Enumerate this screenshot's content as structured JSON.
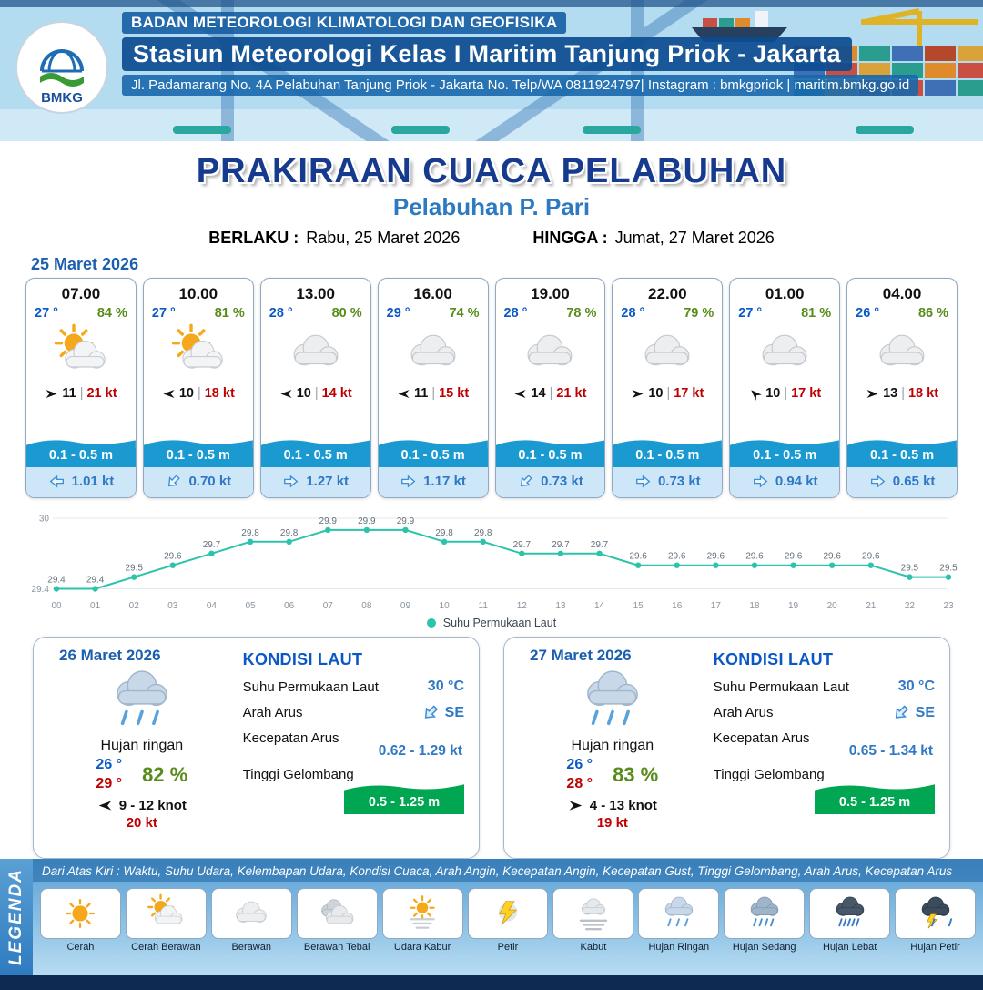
{
  "colors": {
    "temp_blue": "#0a58c8",
    "humidity_green": "#578c1a",
    "gust_red": "#c00000",
    "wave_band_blue": "#1b9ad2",
    "current_blue": "#2e78c6",
    "chart_line": "#2cc3ab",
    "wave_green": "#00a651",
    "title_blue": "#163a8e",
    "subtitle_blue": "#2e7ac0"
  },
  "header": {
    "logo": "BMKG",
    "org": "BADAN METEOROLOGI KLIMATOLOGI DAN GEOFISIKA",
    "station": "Stasiun Meteorologi Kelas I Maritim Tanjung Priok - Jakarta",
    "address": "Jl. Padamarang No. 4A Pelabuhan Tanjung Priok - Jakarta No. Telp/WA 0811924797| Instagram : bmkgpriok | maritim.bmkg.go.id"
  },
  "title": {
    "main": "PRAKIRAAN CUACA PELABUHAN",
    "subtitle": "Pelabuhan P. Pari",
    "valid_from_label": "BERLAKU :",
    "valid_from": "Rabu, 25 Maret 2026",
    "valid_to_label": "HINGGA :",
    "valid_to": "Jumat, 27 Maret 2026"
  },
  "hourly_date": "25 Maret 2026",
  "hourly": [
    {
      "time": "07.00",
      "temp": "27 °",
      "humidity": "84 %",
      "icon": "cerah-berawan",
      "wind_deg": 0,
      "wind": "11",
      "sep": "|",
      "gust": "21 kt",
      "wave": "0.1 - 0.5 m",
      "current_deg": 180,
      "current": "1.01 kt"
    },
    {
      "time": "10.00",
      "temp": "27 °",
      "humidity": "81 %",
      "icon": "cerah-berawan",
      "wind_deg": 180,
      "wind": "10",
      "sep": "|",
      "gust": "18 kt",
      "wave": "0.1 - 0.5 m",
      "current_deg": 135,
      "current": "0.70 kt"
    },
    {
      "time": "13.00",
      "temp": "28 °",
      "humidity": "80 %",
      "icon": "berawan",
      "wind_deg": 180,
      "wind": "10",
      "sep": "|",
      "gust": "14 kt",
      "wave": "0.1 - 0.5 m",
      "current_deg": 0,
      "current": "1.27 kt"
    },
    {
      "time": "16.00",
      "temp": "29 °",
      "humidity": "74 %",
      "icon": "berawan",
      "wind_deg": 180,
      "wind": "11",
      "sep": "|",
      "gust": "15 kt",
      "wave": "0.1 - 0.5 m",
      "current_deg": 0,
      "current": "1.17 kt"
    },
    {
      "time": "19.00",
      "temp": "28 °",
      "humidity": "78 %",
      "icon": "berawan",
      "wind_deg": 180,
      "wind": "14",
      "sep": "|",
      "gust": "21 kt",
      "wave": "0.1 - 0.5 m",
      "current_deg": 135,
      "current": "0.73 kt"
    },
    {
      "time": "22.00",
      "temp": "28 °",
      "humidity": "79 %",
      "icon": "berawan",
      "wind_deg": 0,
      "wind": "10",
      "sep": "|",
      "gust": "17 kt",
      "wave": "0.1 - 0.5 m",
      "current_deg": 0,
      "current": "0.73 kt"
    },
    {
      "time": "01.00",
      "temp": "27 °",
      "humidity": "81 %",
      "icon": "berawan",
      "wind_deg": 225,
      "wind": "10",
      "sep": "|",
      "gust": "17 kt",
      "wave": "0.1 - 0.5 m",
      "current_deg": 0,
      "current": "0.94 kt"
    },
    {
      "time": "04.00",
      "temp": "26 °",
      "humidity": "86 %",
      "icon": "berawan",
      "wind_deg": 0,
      "wind": "13",
      "sep": "|",
      "gust": "18 kt",
      "wave": "0.1 - 0.5 m",
      "current_deg": 0,
      "current": "0.65 kt"
    }
  ],
  "chart_data": {
    "type": "line",
    "series_name": "Suhu Permukaan Laut",
    "x": [
      "00",
      "01",
      "02",
      "03",
      "04",
      "05",
      "06",
      "07",
      "08",
      "09",
      "10",
      "11",
      "12",
      "13",
      "14",
      "15",
      "16",
      "17",
      "18",
      "19",
      "20",
      "21",
      "22",
      "23"
    ],
    "values": [
      29.4,
      29.4,
      29.5,
      29.6,
      29.7,
      29.8,
      29.8,
      29.9,
      29.9,
      29.9,
      29.8,
      29.8,
      29.7,
      29.7,
      29.7,
      29.6,
      29.6,
      29.6,
      29.6,
      29.6,
      29.6,
      29.6,
      29.5,
      29.5
    ],
    "ylim": [
      29.35,
      30.0
    ],
    "yticks": [
      30,
      29.4
    ],
    "grid": false,
    "legend_position": "bottom"
  },
  "daily": [
    {
      "date": "26 Maret 2026",
      "icon": "hujan-ringan",
      "condition": "Hujan ringan",
      "temp_min": "26 °",
      "temp_max": "29 °",
      "humidity": "82 %",
      "wind_deg": 180,
      "wind_range": "9 - 12 knot",
      "gust": "20 kt",
      "sea_title": "KONDISI LAUT",
      "sst_label": "Suhu Permukaan Laut",
      "sst": "30 °C",
      "current_dir_label": "Arah Arus",
      "current_dir": "SE",
      "current_deg": 135,
      "current_speed_label": "Kecepatan Arus",
      "current_speed": "0.62 - 1.29 kt",
      "wave_label": "Tinggi Gelombang",
      "wave": "0.5 - 1.25 m"
    },
    {
      "date": "27 Maret 2026",
      "icon": "hujan-ringan",
      "condition": "Hujan ringan",
      "temp_min": "26 °",
      "temp_max": "28 °",
      "humidity": "83 %",
      "wind_deg": 0,
      "wind_range": "4 - 13 knot",
      "gust": "19 kt",
      "sea_title": "KONDISI LAUT",
      "sst_label": "Suhu Permukaan Laut",
      "sst": "30 °C",
      "current_dir_label": "Arah Arus",
      "current_dir": "SE",
      "current_deg": 135,
      "current_speed_label": "Kecepatan Arus",
      "current_speed": "0.65 - 1.34 kt",
      "wave_label": "Tinggi Gelombang",
      "wave": "0.5 - 1.25 m"
    }
  ],
  "legend": {
    "title": "LEGENDA",
    "note": "Dari Atas Kiri : Waktu, Suhu Udara, Kelembapan Udara, Kondisi Cuaca, Arah Angin, Kecepatan Angin, Kecepatan Gust, Tinggi Gelombang, Arah Arus, Kecepatan Arus",
    "items": [
      {
        "label": "Cerah",
        "icon": "cerah"
      },
      {
        "label": "Cerah Berawan",
        "icon": "cerah-berawan"
      },
      {
        "label": "Berawan",
        "icon": "berawan"
      },
      {
        "label": "Berawan Tebal",
        "icon": "berawan-tebal"
      },
      {
        "label": "Udara Kabur",
        "icon": "udara-kabur"
      },
      {
        "label": "Petir",
        "icon": "petir"
      },
      {
        "label": "Kabut",
        "icon": "kabut"
      },
      {
        "label": "Hujan Ringan",
        "icon": "hujan-ringan"
      },
      {
        "label": "Hujan Sedang",
        "icon": "hujan-sedang"
      },
      {
        "label": "Hujan Lebat",
        "icon": "hujan-lebat"
      },
      {
        "label": "Hujan Petir",
        "icon": "hujan-petir"
      }
    ]
  }
}
